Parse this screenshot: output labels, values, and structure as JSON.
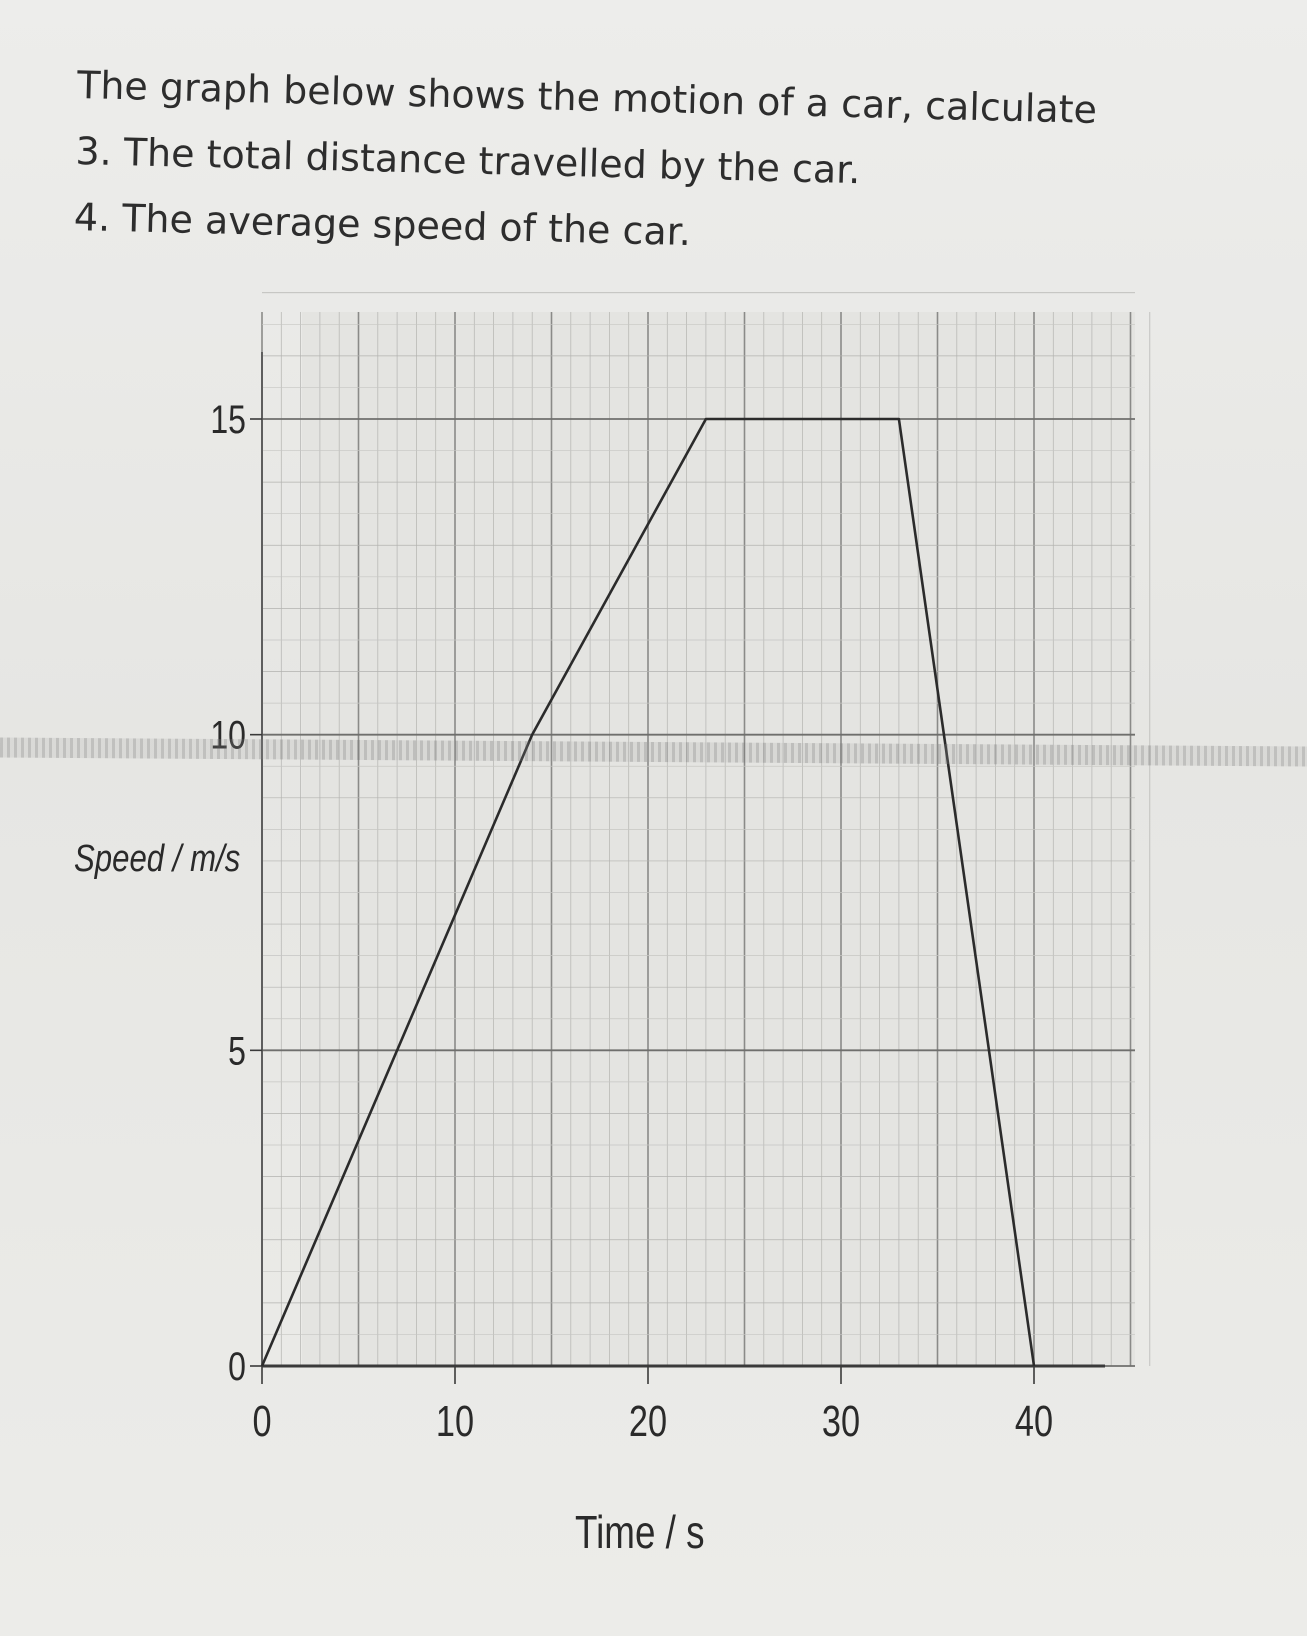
{
  "questions": {
    "intro": "The graph below shows the motion of a car, calculate",
    "q3": "3. The total distance travelled by the car.",
    "q4": "4. The average speed of the car."
  },
  "chart_data": {
    "type": "line",
    "xlabel": "Time / s",
    "ylabel": "Speed / m/s",
    "xlim": [
      0,
      46
    ],
    "ylim": [
      0,
      17
    ],
    "x_ticks": [
      0,
      10,
      20,
      30,
      40
    ],
    "y_ticks": [
      0,
      5,
      10,
      15
    ],
    "grid": true,
    "series": [
      {
        "x": [
          0,
          14,
          23,
          33,
          40
        ],
        "y": [
          0,
          10,
          15,
          15,
          0
        ]
      }
    ]
  }
}
